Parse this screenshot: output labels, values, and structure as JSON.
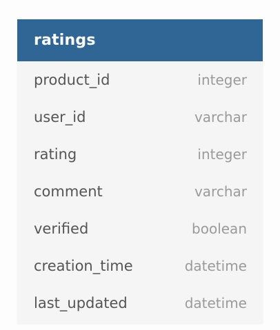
{
  "table": {
    "title": "ratings",
    "header_color": "#2f6696",
    "columns": [
      {
        "name": "product_id",
        "type": "integer"
      },
      {
        "name": "user_id",
        "type": "varchar"
      },
      {
        "name": "rating",
        "type": "integer"
      },
      {
        "name": "comment",
        "type": "varchar"
      },
      {
        "name": "verified",
        "type": "boolean"
      },
      {
        "name": "creation_time",
        "type": "datetime"
      },
      {
        "name": "last_updated",
        "type": "datetime"
      }
    ]
  }
}
